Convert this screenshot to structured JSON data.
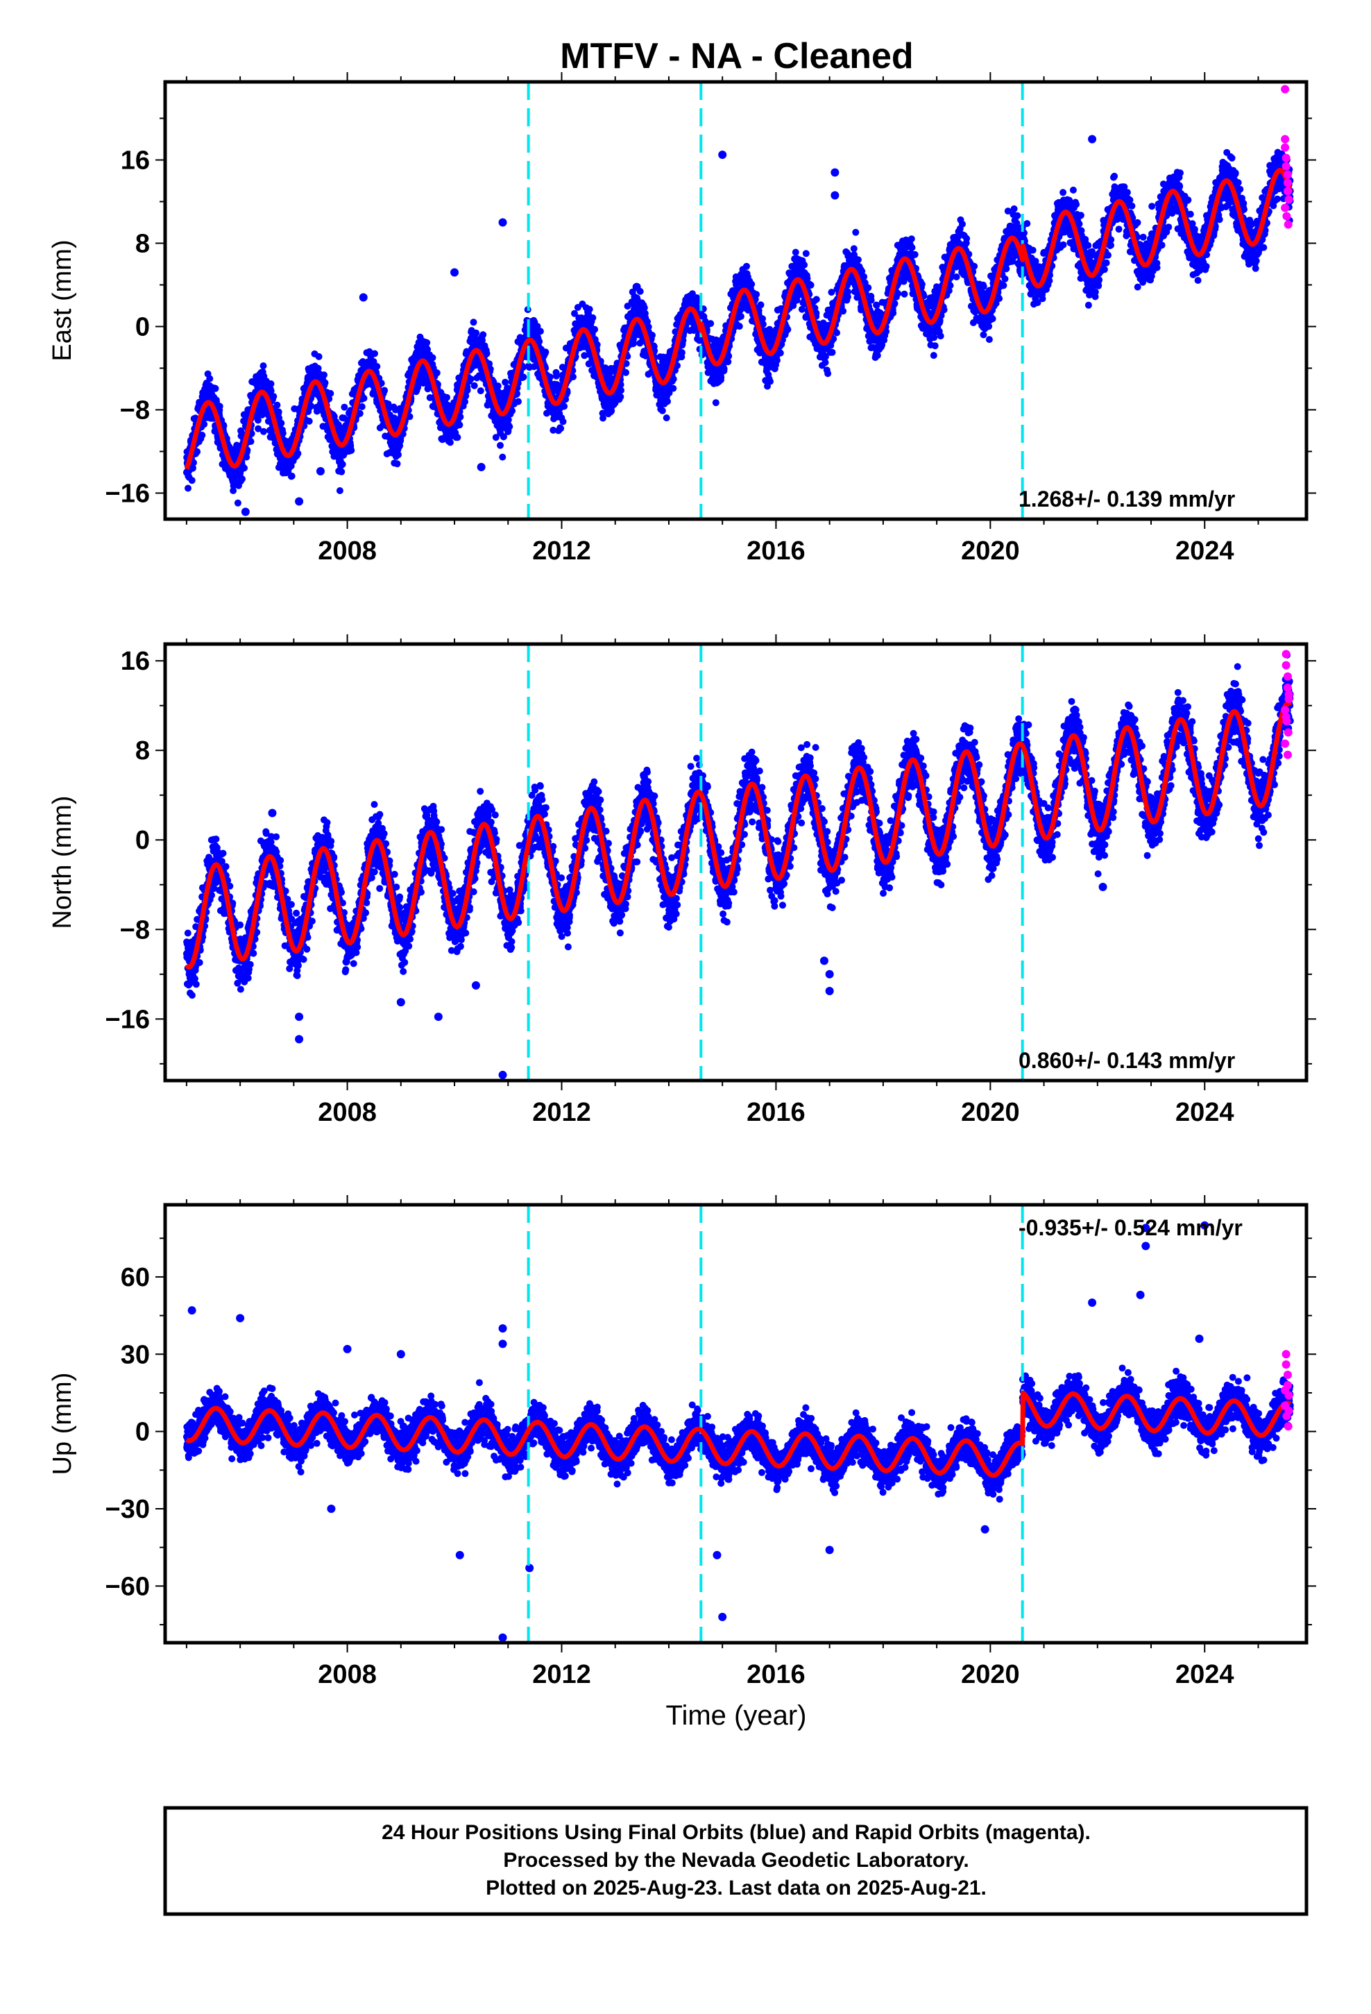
{
  "title": "MTFV  - NA - Cleaned",
  "x_axis_label": "Time (year)",
  "footer": {
    "line1": "24 Hour Positions Using Final Orbits (blue) and Rapid Orbits (magenta).",
    "line2": "Processed by the Nevada Geodetic Laboratory.",
    "line3": "Plotted on 2025-Aug-23. Last data on 2025-Aug-21."
  },
  "colors": {
    "final_orbits": "#0000ff",
    "rapid_orbits": "#ff00ff",
    "model_fit": "#ff0000",
    "offsets": "#00e5ee"
  },
  "chart_data": [
    {
      "type": "scatter",
      "component": "East",
      "ylabel": "East (mm)",
      "xlim": [
        2004.6,
        2025.9
      ],
      "ylim": [
        -18.5,
        23.5
      ],
      "xticks": [
        2008,
        2012,
        2016,
        2020,
        2024
      ],
      "yticks": [
        -16,
        -8,
        0,
        8,
        16
      ],
      "rate_label": "1.268+/- 0.139 mm/yr",
      "rate_position": "bottom-right",
      "offsets": [
        2011.38,
        2014.6,
        2020.6
      ],
      "model": {
        "start": 2005.0,
        "end": 2025.6,
        "intercept_at_start": -11.0,
        "rate": 1.0,
        "amplitude": 3.3,
        "peak_phase": 0.4,
        "offset_jumps": [
          0,
          0.8,
          1.5
        ],
        "scatter": 2.0
      },
      "outliers": [
        [
          2006.1,
          -17.8
        ],
        [
          2007.5,
          -13.9
        ],
        [
          2008.3,
          2.8
        ],
        [
          2010.0,
          5.2
        ],
        [
          2010.5,
          -13.5
        ],
        [
          2010.9,
          10.0
        ],
        [
          2013.4,
          3.8
        ],
        [
          2015.0,
          16.5
        ],
        [
          2017.1,
          14.8
        ],
        [
          2021.9,
          18.0
        ],
        [
          2017.1,
          12.6
        ],
        [
          2007.1,
          -16.8
        ]
      ],
      "rapid_orbits": [
        [
          2025.5,
          22.8
        ],
        [
          2025.5,
          18.0
        ],
        [
          2025.5,
          17.2
        ],
        [
          2025.52,
          16.2
        ],
        [
          2025.52,
          15.4
        ],
        [
          2025.55,
          14.6
        ],
        [
          2025.55,
          13.8
        ],
        [
          2025.55,
          13.0
        ],
        [
          2025.57,
          12.2
        ],
        [
          2025.5,
          11.4
        ],
        [
          2025.53,
          10.6
        ],
        [
          2025.56,
          9.8
        ]
      ]
    },
    {
      "type": "scatter",
      "component": "North",
      "ylabel": "North (mm)",
      "xlim": [
        2004.6,
        2025.9
      ],
      "ylim": [
        -21.5,
        17.5
      ],
      "xticks": [
        2008,
        2012,
        2016,
        2020,
        2024
      ],
      "yticks": [
        -16,
        -8,
        0,
        8,
        16
      ],
      "rate_label": "0.860+/- 0.143 mm/yr",
      "rate_position": "bottom-right",
      "offsets": [
        2011.38,
        2014.6,
        2020.6
      ],
      "model": {
        "start": 2005.0,
        "end": 2025.6,
        "intercept_at_start": -7.0,
        "rate": 0.72,
        "amplitude": 4.4,
        "peak_phase": 0.55,
        "offset_jumps": [
          0,
          0,
          0
        ],
        "scatter": 2.2
      },
      "outliers": [
        [
          2006.6,
          2.4
        ],
        [
          2007.1,
          -15.8
        ],
        [
          2007.1,
          -17.8
        ],
        [
          2009.0,
          -14.5
        ],
        [
          2009.7,
          -15.8
        ],
        [
          2010.9,
          -21.0
        ],
        [
          2010.4,
          -13.0
        ],
        [
          2017.0,
          -13.5
        ],
        [
          2017.0,
          -12.0
        ],
        [
          2016.9,
          -10.8
        ],
        [
          2022.1,
          -4.2
        ],
        [
          2021.4,
          8.2
        ]
      ],
      "rapid_orbits": [
        [
          2025.52,
          16.6
        ],
        [
          2025.52,
          15.6
        ],
        [
          2025.55,
          14.6
        ],
        [
          2025.55,
          13.6
        ],
        [
          2025.57,
          12.6
        ],
        [
          2025.5,
          11.6
        ],
        [
          2025.53,
          10.6
        ],
        [
          2025.56,
          9.6
        ],
        [
          2025.5,
          8.6
        ],
        [
          2025.55,
          7.6
        ],
        [
          2025.52,
          11.0
        ],
        [
          2025.57,
          13.0
        ]
      ]
    },
    {
      "type": "scatter",
      "component": "Up",
      "ylabel": "Up (mm)",
      "xlim": [
        2004.6,
        2025.9
      ],
      "ylim": [
        -82,
        88
      ],
      "xticks": [
        2008,
        2012,
        2016,
        2020,
        2024
      ],
      "yticks": [
        -60,
        -30,
        0,
        30,
        60
      ],
      "rate_label": "-0.935+/- 0.524 mm/yr",
      "rate_position": "top-right",
      "offsets": [
        2011.38,
        2014.6,
        2020.6
      ],
      "model": {
        "start": 2005.0,
        "end": 2025.6,
        "intercept_at_start": 3.0,
        "rate": -0.9,
        "amplitude": 6.5,
        "peak_phase": 0.55,
        "offset_jumps": [
          0,
          0,
          20.0
        ],
        "scatter": 6.5
      },
      "outliers": [
        [
          2005.1,
          47.0
        ],
        [
          2006.0,
          44.0
        ],
        [
          2008.0,
          32.0
        ],
        [
          2009.0,
          30.0
        ],
        [
          2010.9,
          40.0
        ],
        [
          2010.9,
          34.0
        ],
        [
          2010.1,
          -48.0
        ],
        [
          2011.4,
          -53.0
        ],
        [
          2010.9,
          -80.0
        ],
        [
          2015.0,
          -72.0
        ],
        [
          2014.9,
          -48.0
        ],
        [
          2017.0,
          -46.0
        ],
        [
          2019.9,
          -38.0
        ],
        [
          2007.7,
          -30.0
        ],
        [
          2022.9,
          79.0
        ],
        [
          2022.9,
          72.0
        ],
        [
          2022.8,
          53.0
        ],
        [
          2021.9,
          50.0
        ],
        [
          2023.9,
          36.0
        ],
        [
          2024.0,
          80.0
        ]
      ],
      "rapid_orbits": [
        [
          2025.52,
          30.0
        ],
        [
          2025.52,
          26.0
        ],
        [
          2025.55,
          22.0
        ],
        [
          2025.55,
          18.0
        ],
        [
          2025.57,
          14.0
        ],
        [
          2025.5,
          10.0
        ],
        [
          2025.53,
          6.0
        ],
        [
          2025.56,
          2.0
        ],
        [
          2025.5,
          16.0
        ],
        [
          2025.57,
          8.0
        ]
      ]
    }
  ]
}
